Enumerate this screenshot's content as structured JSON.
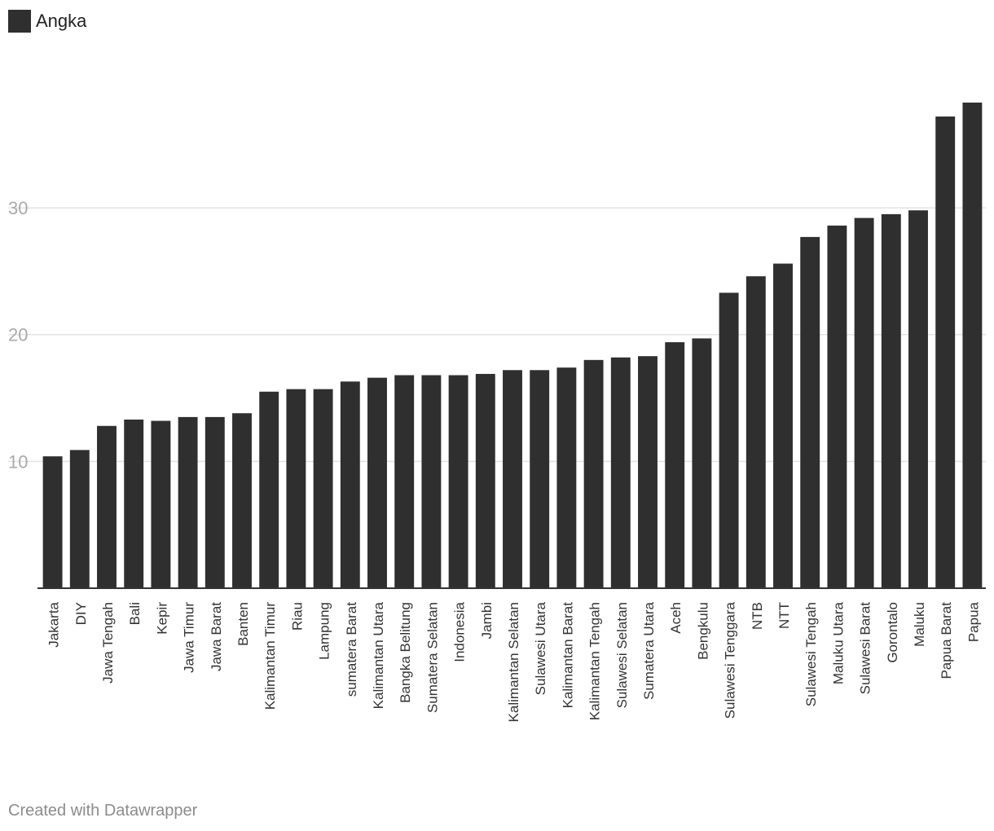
{
  "legend": {
    "label": "Angka",
    "color": "#2f2f2f"
  },
  "footer": {
    "credit": "Created with Datawrapper"
  },
  "chart_data": {
    "type": "bar",
    "title": "",
    "xlabel": "",
    "ylabel": "",
    "ylim": [
      0,
      39
    ],
    "yticks": [
      10,
      20,
      30
    ],
    "grid": true,
    "legend_position": "top-left",
    "bar_color": "#2f2f2f",
    "categories": [
      "Jakarta",
      "DIY",
      "Jawa Tengah",
      "Bali",
      "Kepir",
      "Jawa Timur",
      "Jawa Barat",
      "Banten",
      "Kalimantan Timur",
      "Riau",
      "Lampung",
      "sumatera Barat",
      "Kalimantan Utara",
      "Bangka Belitung",
      "Sumatera Selatan",
      "Indonesia",
      "Jambi",
      "Kalimantan Selatan",
      "Sulawesi Utara",
      "Kalimantan Barat",
      "Kalimantan Tengah",
      "Sulawesi Selatan",
      "Sumatera Utara",
      "Aceh",
      "Bengkulu",
      "Sulawesi Tenggara",
      "NTB",
      "NTT",
      "Sulawesi Tengah",
      "Maluku Utara",
      "Sulawesi Barat",
      "Gorontalo",
      "Maluku",
      "Papua Barat",
      "Papua"
    ],
    "series": [
      {
        "name": "Angka",
        "values": [
          10.4,
          10.9,
          12.8,
          13.3,
          13.2,
          13.5,
          13.5,
          13.8,
          15.5,
          15.7,
          15.7,
          16.3,
          16.6,
          16.8,
          16.8,
          16.8,
          16.9,
          17.2,
          17.2,
          17.4,
          18.0,
          18.2,
          18.3,
          19.4,
          19.7,
          23.3,
          24.6,
          25.6,
          27.7,
          28.6,
          29.2,
          29.5,
          29.8,
          37.2,
          38.3
        ]
      }
    ]
  }
}
